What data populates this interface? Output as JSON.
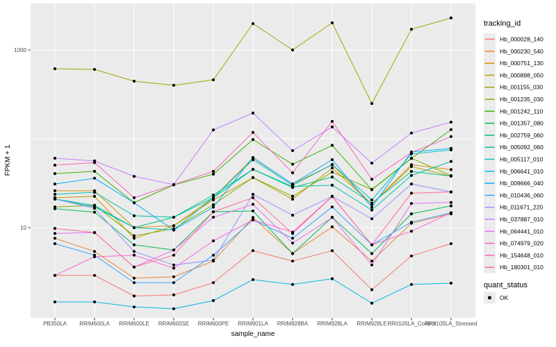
{
  "figure": {
    "y_axis": {
      "label": "FPKM + 1"
    },
    "x_axis": {
      "label": "sample_name"
    },
    "legend": {
      "tracking_title": "tracking_id",
      "quant_title": "quant_status",
      "quant_value": "OK"
    }
  },
  "colors": {
    "panel_bg": "#EBEBEB",
    "grid": "#FFFFFF",
    "axis_text": "#4D4D4D",
    "title_text": "#000000",
    "tick_mark": "#333333",
    "legend_key_bg": "#EBEBEB",
    "point": "#000000"
  },
  "chart_data": {
    "type": "line",
    "title": "",
    "xlabel": "sample_name",
    "ylabel": "FPKM + 1",
    "y_scale": "log10",
    "ylim": [
      1,
      3000
    ],
    "y_ticks_labeled": [
      1000,
      10
    ],
    "y_gridlines": [
      1000,
      100,
      10
    ],
    "grid": true,
    "legend_position": "right",
    "point_marker": "black dot (quant_status = OK at every point)",
    "categories": [
      "PB350LA",
      "RRIM600LA",
      "RRIM600LE",
      "RRIM600SE",
      "RRIM600PE",
      "RRIM901LA",
      "RRIM928BA",
      "RRIM928LA",
      "RRIM928LE",
      "RRII105LA_Control",
      "RRII105LA_Stressed"
    ],
    "series": [
      {
        "name": "Hb_000028_140",
        "color": "#F8766D",
        "values": [
          2.9,
          2.9,
          1.7,
          1.75,
          2.4,
          5.5,
          4.2,
          5.5,
          2.0,
          4.8,
          6.6
        ]
      },
      {
        "name": "Hb_000230_540",
        "color": "#EA8331",
        "values": [
          7.6,
          5.4,
          2.7,
          2.8,
          4.2,
          13,
          5.1,
          10.2,
          4.2,
          11.2,
          14.3
        ]
      },
      {
        "name": "Hb_000751_130",
        "color": "#D89000",
        "values": [
          26,
          26,
          10,
          10.5,
          21.7,
          61,
          31,
          51,
          18.3,
          51,
          45
        ]
      },
      {
        "name": "Hb_000898_050",
        "color": "#C09B00",
        "values": [
          21.7,
          22.5,
          7.6,
          10.5,
          20.5,
          36.6,
          20.9,
          47,
          18.4,
          48.7,
          38
        ]
      },
      {
        "name": "Hb_001155_030",
        "color": "#A3A500",
        "values": [
          615,
          604,
          445,
          400,
          461,
          1980,
          1000,
          2020,
          250,
          1710,
          2290
        ]
      },
      {
        "name": "Hb_001235_030",
        "color": "#7CAE00",
        "values": [
          17.1,
          17.8,
          8.1,
          9.7,
          18.1,
          36.6,
          22.5,
          42.2,
          26.9,
          60.5,
          38.5
        ]
      },
      {
        "name": "Hb_001242_110",
        "color": "#39B600",
        "values": [
          40.6,
          43,
          19.1,
          30.3,
          40,
          98,
          51.7,
          84.5,
          26.7,
          60,
          127
        ]
      },
      {
        "name": "Hb_001357_080",
        "color": "#00BB4E",
        "values": [
          16.3,
          14.9,
          6.4,
          5.6,
          15.1,
          15.4,
          5.1,
          13.1,
          5.1,
          14.3,
          17.6
        ]
      },
      {
        "name": "Hb_002759_060",
        "color": "#00BF7D",
        "values": [
          20.9,
          17.1,
          10,
          13.1,
          23.3,
          45.3,
          28.3,
          37.2,
          18.8,
          42.9,
          38
        ]
      },
      {
        "name": "Hb_005092_060",
        "color": "#00C1A3",
        "values": [
          23.7,
          25,
          13.6,
          13.1,
          21.7,
          45.3,
          29,
          30,
          15.8,
          38.7,
          55.6
        ]
      },
      {
        "name": "Hb_005117_010",
        "color": "#00BFC4",
        "values": [
          21,
          17.8,
          10,
          9.4,
          21.7,
          58.2,
          29.9,
          51.4,
          20.5,
          67.5,
          75
        ]
      },
      {
        "name": "Hb_006641_010",
        "color": "#00BAE0",
        "values": [
          1.46,
          1.46,
          1.28,
          1.22,
          1.51,
          2.6,
          2.29,
          2.66,
          1.41,
          2.29,
          2.37
        ]
      },
      {
        "name": "Hb_009666_040",
        "color": "#00B0F6",
        "values": [
          31,
          36,
          19,
          9.4,
          17,
          61.5,
          31,
          58.3,
          17,
          71,
          78
        ]
      },
      {
        "name": "Hb_010436_060",
        "color": "#35A2FF",
        "values": [
          6.6,
          4.9,
          2.4,
          2.4,
          4.9,
          12.2,
          7.6,
          17.1,
          6.4,
          11.5,
          14.7
        ]
      },
      {
        "name": "Hb_011671_220",
        "color": "#9590FF",
        "values": [
          21,
          16.5,
          5.4,
          3.8,
          4.3,
          23.7,
          13.8,
          22.5,
          12.6,
          31,
          25.2
        ]
      },
      {
        "name": "Hb_037887_010",
        "color": "#C77CFF",
        "values": [
          60.4,
          56.3,
          37.8,
          30.5,
          126,
          195,
          73.6,
          136,
          53.3,
          116,
          154
        ]
      },
      {
        "name": "Hb_064441_010",
        "color": "#E76BF3",
        "values": [
          8.6,
          8.8,
          3.6,
          5.6,
          13.1,
          18.3,
          6.7,
          13,
          3.8,
          18.7,
          19.2
        ]
      },
      {
        "name": "Hb_074979_020",
        "color": "#FA62DB",
        "values": [
          2.9,
          4.7,
          4.9,
          3.5,
          7.1,
          12.2,
          8.9,
          22.5,
          6.4,
          9.1,
          14.7
        ]
      },
      {
        "name": "Hb_154648_010",
        "color": "#FF62BC",
        "values": [
          50.5,
          54,
          21.7,
          30.5,
          43,
          118,
          41.4,
          157,
          35,
          70,
          106
        ]
      },
      {
        "name": "Hb_180301_010",
        "color": "#FF6A98",
        "values": [
          9.8,
          8.8,
          3.6,
          4.9,
          15.1,
          21.7,
          8.6,
          22.4,
          6.4,
          24.4,
          25.2
        ]
      }
    ]
  }
}
